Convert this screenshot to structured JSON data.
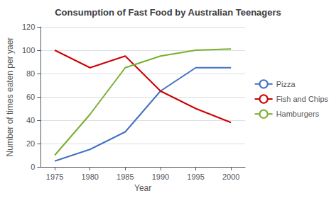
{
  "chart_data": {
    "type": "line",
    "title": "Consumption of Fast Food by Australian Teenagers",
    "xlabel": "Year",
    "ylabel": "Number of times eaten per yaer",
    "x": [
      1975,
      1980,
      1985,
      1990,
      1995,
      2000
    ],
    "series": [
      {
        "name": "Pizza",
        "color": "#4472C4",
        "values": [
          5,
          15,
          30,
          65,
          85,
          85
        ]
      },
      {
        "name": "Fish and Chips",
        "color": "#CC0000",
        "values": [
          100,
          85,
          95,
          65,
          50,
          38
        ]
      },
      {
        "name": "Hamburgers",
        "color": "#7AAF2E",
        "values": [
          10,
          45,
          85,
          95,
          100,
          101
        ]
      }
    ],
    "xlim": [
      1973,
      2002
    ],
    "xticks": [
      1975,
      1980,
      1985,
      1990,
      1995,
      2000
    ],
    "ylim": [
      0,
      120
    ],
    "yticks": [
      0,
      20,
      40,
      60,
      80,
      100,
      120
    ],
    "grid": true,
    "legend": "right"
  }
}
